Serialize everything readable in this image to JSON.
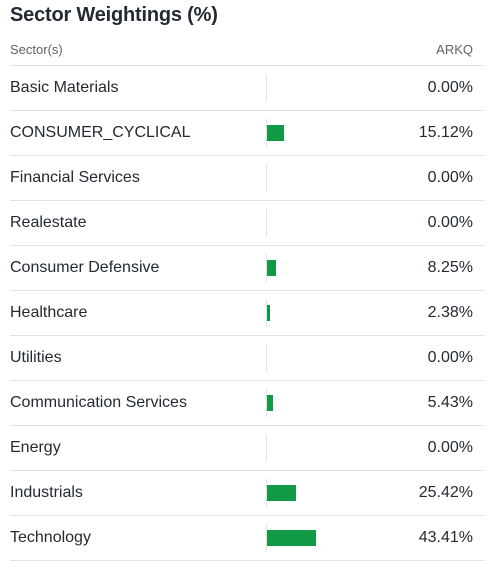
{
  "title": "Sector Weightings (%)",
  "header": {
    "sector_label": "Sector(s)",
    "fund_label": "ARKQ"
  },
  "colors": {
    "bar": "#0f9a43",
    "divider": "#e0e4e9"
  },
  "rows": [
    {
      "sector": "Basic Materials",
      "value": 0.0,
      "display": "0.00%"
    },
    {
      "sector": "CONSUMER_CYCLICAL",
      "value": 15.12,
      "display": "15.12%"
    },
    {
      "sector": "Financial Services",
      "value": 0.0,
      "display": "0.00%"
    },
    {
      "sector": "Realestate",
      "value": 0.0,
      "display": "0.00%"
    },
    {
      "sector": "Consumer Defensive",
      "value": 8.25,
      "display": "8.25%"
    },
    {
      "sector": "Healthcare",
      "value": 2.38,
      "display": "2.38%"
    },
    {
      "sector": "Utilities",
      "value": 0.0,
      "display": "0.00%"
    },
    {
      "sector": "Communication Services",
      "value": 5.43,
      "display": "5.43%"
    },
    {
      "sector": "Energy",
      "value": 0.0,
      "display": "0.00%"
    },
    {
      "sector": "Industrials",
      "value": 25.42,
      "display": "25.42%"
    },
    {
      "sector": "Technology",
      "value": 43.41,
      "display": "43.41%"
    }
  ]
}
